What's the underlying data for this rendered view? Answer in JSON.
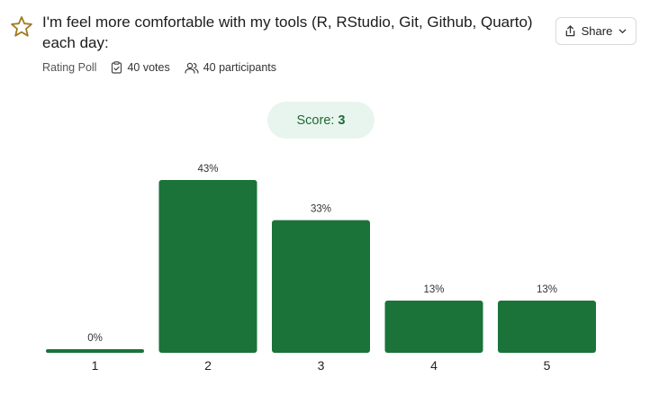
{
  "poll": {
    "title": "I'm feel more comfortable with my tools (R, RStudio, Git, Github, Quarto) each day:",
    "type_label": "Rating Poll",
    "votes_label": "40 votes",
    "participants_label": "40 participants",
    "share_label": "Share",
    "score_label": "Score:",
    "score_value": "3"
  },
  "icons": {
    "title": "star-icon",
    "share": "share-icon",
    "share_menu": "chevron-down-icon",
    "votes": "clipboard-check-icon",
    "participants": "users-icon"
  },
  "colors": {
    "bar": "#1b7339",
    "score_bg": "#e8f5ee",
    "score_text": "#1d6b35",
    "star": "#a07a1e"
  },
  "chart_data": {
    "type": "bar",
    "categories": [
      "1",
      "2",
      "3",
      "4",
      "5"
    ],
    "values": [
      0,
      43,
      33,
      13,
      13
    ],
    "labels": [
      "0%",
      "43%",
      "33%",
      "13%",
      "13%"
    ],
    "ylim": [
      0,
      43
    ]
  }
}
